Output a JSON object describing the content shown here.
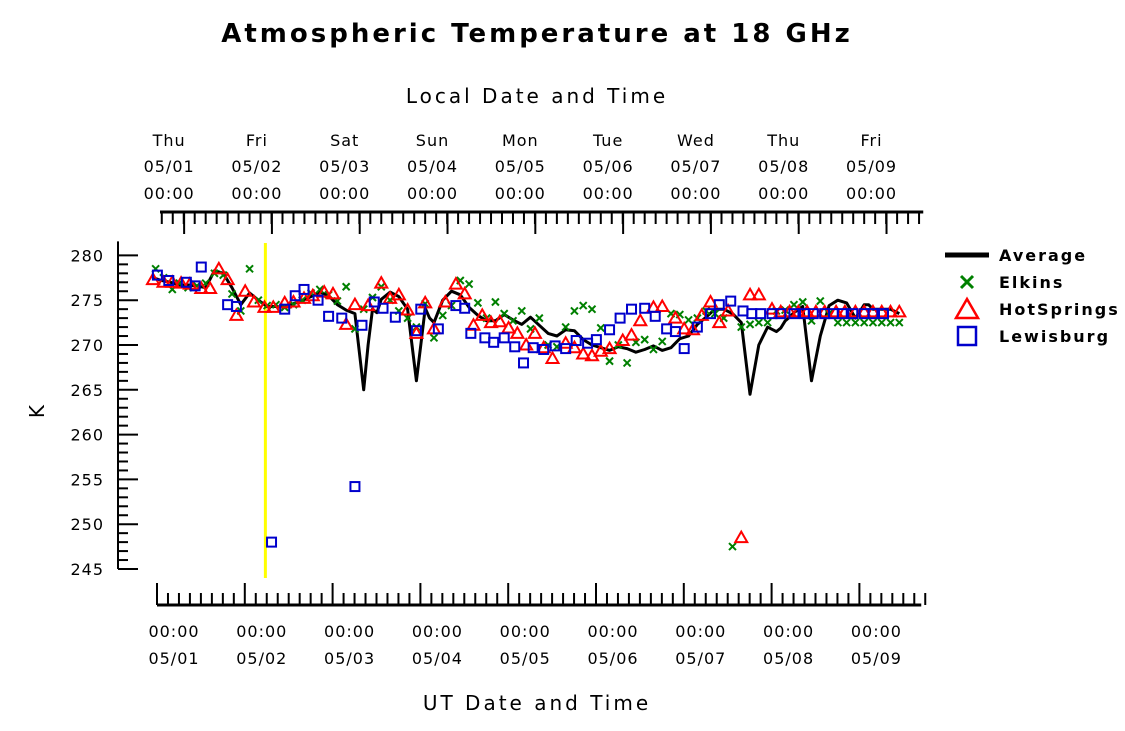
{
  "chart_data": {
    "type": "scatter",
    "title": "Atmospheric Temperature at 18 GHz",
    "top_xlabel": "Local Date and Time",
    "xlabel": "UT Date and Time",
    "ylabel": "K",
    "ylim": [
      245,
      280
    ],
    "yticks": [
      245,
      250,
      255,
      260,
      265,
      270,
      275,
      280
    ],
    "xlim_days": [
      0,
      8.75
    ],
    "ut_ticks": [
      {
        "day": 0,
        "time": "00:00",
        "date": "05/01"
      },
      {
        "day": 1,
        "time": "00:00",
        "date": "05/02"
      },
      {
        "day": 2,
        "time": "00:00",
        "date": "05/03"
      },
      {
        "day": 3,
        "time": "00:00",
        "date": "05/04"
      },
      {
        "day": 4,
        "time": "00:00",
        "date": "05/05"
      },
      {
        "day": 5,
        "time": "00:00",
        "date": "05/06"
      },
      {
        "day": 6,
        "time": "00:00",
        "date": "05/07"
      },
      {
        "day": 7,
        "time": "00:00",
        "date": "05/08"
      },
      {
        "day": 8,
        "time": "00:00",
        "date": "05/09"
      }
    ],
    "local_ticks": [
      {
        "day": 0.4,
        "weekday": "Thu",
        "date": "05/01",
        "time": "00:00"
      },
      {
        "day": 1.4,
        "weekday": "Fri",
        "date": "05/02",
        "time": "00:00"
      },
      {
        "day": 2.4,
        "weekday": "Sat",
        "date": "05/03",
        "time": "00:00"
      },
      {
        "day": 3.4,
        "weekday": "Sun",
        "date": "05/04",
        "time": "00:00"
      },
      {
        "day": 4.4,
        "weekday": "Mon",
        "date": "05/05",
        "time": "00:00"
      },
      {
        "day": 5.4,
        "weekday": "Tue",
        "date": "05/06",
        "time": "00:00"
      },
      {
        "day": 6.4,
        "weekday": "Wed",
        "date": "05/07",
        "time": "00:00"
      },
      {
        "day": 7.4,
        "weekday": "Thu",
        "date": "05/08",
        "time": "00:00"
      },
      {
        "day": 8.4,
        "weekday": "Fri",
        "date": "05/09",
        "time": "00:00"
      }
    ],
    "marker_line_day": 1.28,
    "legend_position": "right",
    "series": [
      {
        "name": "Average",
        "style": "line",
        "color": "#000000",
        "x": [
          0,
          0.1,
          0.2,
          0.3,
          0.4,
          0.5,
          0.6,
          0.7,
          0.8,
          0.9,
          1.0,
          1.1,
          1.2,
          1.3,
          1.4,
          1.5,
          1.6,
          1.7,
          1.8,
          1.9,
          2.0,
          2.1,
          2.2,
          2.3,
          2.4,
          2.45,
          2.5,
          2.55,
          2.6,
          2.7,
          2.8,
          2.9,
          3.0,
          3.05,
          3.1,
          3.15,
          3.2,
          3.3,
          3.4,
          3.5,
          3.6,
          3.7,
          3.8,
          3.9,
          4.0,
          4.1,
          4.2,
          4.3,
          4.4,
          4.5,
          4.6,
          4.7,
          4.8,
          4.9,
          5.0,
          5.1,
          5.2,
          5.3,
          5.4,
          5.5,
          5.6,
          5.7,
          5.8,
          5.9,
          6.0,
          6.1,
          6.2,
          6.3,
          6.4,
          6.5,
          6.6,
          6.7,
          6.8,
          6.9,
          7.0,
          7.1,
          7.15,
          7.2,
          7.25,
          7.3,
          7.4,
          7.5,
          7.6,
          7.7,
          7.8,
          7.9,
          8.0,
          8.05,
          8.1,
          8.15,
          8.2,
          8.3,
          8.4,
          8.5
        ],
        "y": [
          277.5,
          277.2,
          277.0,
          276.7,
          276.7,
          276.6,
          276.4,
          278.3,
          278.0,
          276.4,
          274.5,
          275.8,
          275.0,
          274.3,
          274.3,
          274.2,
          274.6,
          275.0,
          275.4,
          275.9,
          275.5,
          274.5,
          273.9,
          273.5,
          265.0,
          270.0,
          274.0,
          273.6,
          275.1,
          275.9,
          275.4,
          274.0,
          266.0,
          270.0,
          274.1,
          273.0,
          272.5,
          275.0,
          276.0,
          275.6,
          274.2,
          273.3,
          272.7,
          272.7,
          273.4,
          272.8,
          272.3,
          273.1,
          272.2,
          271.3,
          271.0,
          271.7,
          271.6,
          270.6,
          270.0,
          269.7,
          269.4,
          269.8,
          269.6,
          269.2,
          269.5,
          269.9,
          269.4,
          269.7,
          270.7,
          271.0,
          272.3,
          273.1,
          274.0,
          274.0,
          273.5,
          272.5,
          264.5,
          270.0,
          272.0,
          271.5,
          271.9,
          272.7,
          273.1,
          273.6,
          274.3,
          266.0,
          271.0,
          274.4,
          275.0,
          274.7,
          273.0,
          273.7,
          274.5,
          274.5,
          274.0,
          274.0,
          274.0,
          273.5
        ]
      },
      {
        "name": "Elkins",
        "style": "x",
        "color": "#008000",
        "x": [
          0.03,
          0.12,
          0.22,
          0.3,
          0.4,
          0.5,
          0.6,
          0.7,
          0.8,
          0.9,
          1.0,
          1.1,
          1.2,
          1.3,
          1.4,
          1.5,
          1.6,
          1.7,
          1.8,
          1.9,
          2.0,
          2.1,
          2.2,
          2.3,
          2.4,
          2.5,
          2.6,
          2.7,
          2.8,
          2.9,
          3.0,
          3.1,
          3.2,
          3.3,
          3.4,
          3.5,
          3.6,
          3.7,
          3.8,
          3.9,
          4.0,
          4.1,
          4.2,
          4.3,
          4.4,
          4.5,
          4.6,
          4.7,
          4.8,
          4.9,
          5.0,
          5.1,
          5.2,
          5.3,
          5.4,
          5.5,
          5.6,
          5.7,
          5.8,
          5.9,
          6.0,
          6.1,
          6.2,
          6.3,
          6.4,
          6.5,
          6.6,
          6.7,
          6.8,
          6.9,
          7.0,
          7.1,
          7.2,
          7.3,
          7.4,
          7.5,
          7.6,
          7.7,
          7.8,
          7.9,
          8.0,
          8.1,
          8.2,
          8.3,
          8.4,
          8.5
        ],
        "y": [
          278.5,
          277.5,
          276.2,
          276.9,
          276.4,
          276.6,
          276.9,
          278.0,
          277.8,
          275.7,
          273.8,
          278.5,
          275.0,
          274.4,
          274.5,
          274.2,
          274.5,
          275.0,
          275.8,
          276.2,
          275.6,
          274.9,
          276.5,
          271.8,
          274.0,
          275.3,
          276.5,
          275.0,
          273.8,
          273.0,
          272.0,
          274.6,
          270.8,
          273.3,
          274.4,
          277.2,
          276.8,
          274.7,
          273.0,
          274.8,
          273.5,
          272.7,
          273.8,
          271.8,
          273.0,
          270.0,
          269.8,
          272.0,
          273.8,
          274.4,
          274.0,
          271.9,
          268.2,
          270.0,
          268.0,
          270.3,
          270.6,
          269.5,
          270.4,
          273.5,
          273.4,
          272.8,
          273.0,
          273.8,
          273.5,
          273.0,
          247.5,
          272.0,
          272.3,
          272.5,
          272.5,
          273.8,
          273.9,
          274.5,
          274.8,
          272.7,
          274.9,
          273.5,
          272.5,
          272.5,
          272.5,
          272.5,
          272.5,
          272.5,
          272.5,
          272.5
        ]
      },
      {
        "name": "HotSprings",
        "style": "triangle",
        "color": "#ff0000",
        "x": [
          0,
          0.12,
          0.22,
          0.32,
          0.42,
          0.55,
          0.65,
          0.75,
          0.85,
          0.95,
          1.05,
          1.15,
          1.27,
          1.37,
          1.5,
          1.6,
          1.72,
          1.82,
          1.95,
          2.05,
          2.2,
          2.3,
          2.45,
          2.6,
          2.7,
          2.8,
          2.9,
          3.0,
          3.1,
          3.2,
          3.33,
          3.45,
          3.55,
          3.65,
          3.75,
          3.85,
          3.95,
          4.05,
          4.15,
          4.25,
          4.35,
          4.45,
          4.55,
          4.7,
          4.8,
          4.9,
          5.0,
          5.1,
          5.2,
          5.35,
          5.45,
          5.55,
          5.7,
          5.8,
          5.95,
          6.05,
          6.15,
          6.25,
          6.35,
          6.45,
          6.55,
          6.7,
          6.8,
          6.9,
          7.05,
          7.15,
          7.25,
          7.35,
          7.45,
          7.55,
          7.65,
          7.78,
          7.88,
          8.0,
          8.1,
          8.2,
          8.3,
          8.4,
          8.5
        ],
        "y": [
          277.3,
          277.0,
          277.0,
          276.9,
          276.8,
          276.3,
          276.3,
          278.5,
          277.3,
          273.3,
          276.0,
          274.8,
          274.2,
          274.2,
          274.7,
          274.8,
          275.2,
          275.5,
          275.9,
          275.7,
          272.3,
          274.5,
          274.4,
          276.9,
          275.2,
          275.6,
          273.9,
          271.3,
          274.7,
          271.8,
          274.8,
          276.8,
          275.7,
          272.2,
          273.3,
          272.5,
          272.6,
          271.9,
          271.3,
          270.0,
          271.3,
          269.7,
          268.5,
          270.2,
          269.7,
          269.0,
          268.8,
          269.3,
          269.6,
          270.5,
          271.1,
          272.7,
          274.2,
          274.3,
          273.0,
          271.8,
          271.7,
          273.3,
          274.8,
          272.5,
          273.8,
          248.5,
          275.6,
          275.6,
          274.0,
          273.7,
          273.7,
          273.7,
          273.7,
          273.7,
          273.7,
          273.7,
          273.7,
          273.7,
          273.7,
          273.7,
          273.7,
          273.7,
          273.7
        ]
      },
      {
        "name": "Lewisburg",
        "style": "square",
        "color": "#0000cc",
        "x": [
          0.05,
          0.18,
          0.38,
          0.48,
          0.55,
          0.85,
          0.95,
          1.35,
          1.5,
          1.62,
          1.72,
          1.88,
          2.0,
          2.15,
          2.3,
          2.38,
          2.52,
          2.62,
          2.76,
          3.0,
          3.05,
          3.25,
          3.45,
          3.55,
          3.62,
          3.78,
          3.88,
          4.0,
          4.12,
          4.22,
          4.33,
          4.45,
          4.58,
          4.7,
          4.82,
          4.95,
          5.05,
          5.2,
          5.32,
          5.45,
          5.6,
          5.72,
          5.85,
          5.95,
          6.05,
          6.2,
          6.35,
          6.45,
          6.58,
          6.72,
          6.82,
          6.92,
          7.05,
          7.15,
          7.3,
          7.42,
          7.52,
          7.65,
          7.75,
          7.85,
          7.97,
          8.1,
          8.2,
          8.32
        ],
        "y": [
          277.8,
          277.2,
          277.0,
          276.6,
          278.7,
          274.5,
          274.3,
          248.0,
          274.0,
          275.5,
          276.2,
          275.0,
          273.2,
          273.0,
          254.2,
          272.2,
          274.8,
          274.1,
          273.1,
          271.6,
          274.0,
          271.8,
          274.4,
          274.1,
          271.3,
          270.8,
          270.3,
          270.8,
          269.8,
          268.0,
          269.7,
          269.5,
          269.9,
          269.6,
          270.5,
          270.2,
          270.6,
          271.7,
          273.0,
          274.0,
          274.1,
          273.2,
          271.8,
          271.5,
          269.6,
          272.0,
          273.5,
          274.5,
          274.9,
          273.8,
          273.5,
          273.5,
          273.5,
          273.5,
          273.5,
          273.5,
          273.5,
          273.5,
          273.5,
          273.5,
          273.5,
          273.5,
          273.5,
          273.5
        ]
      }
    ]
  }
}
